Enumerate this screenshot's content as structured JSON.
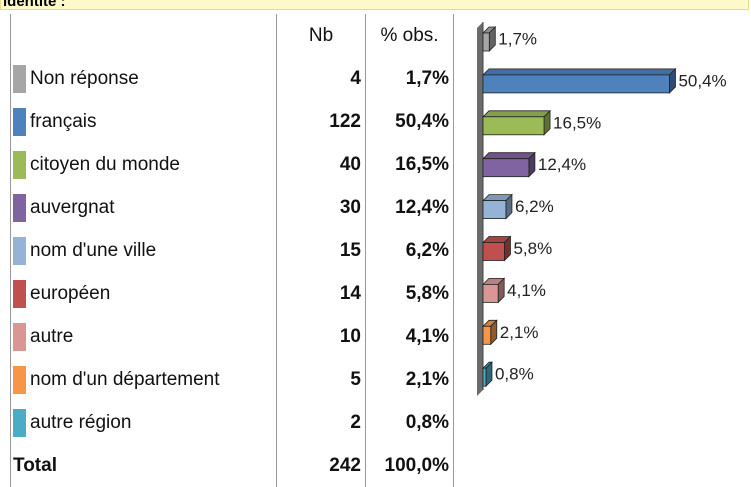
{
  "header": {
    "title": "identité :"
  },
  "table": {
    "columns": [
      "Nb",
      "% obs."
    ],
    "rows": [
      [
        "Non réponse",
        "4",
        "1,7%"
      ],
      [
        "français",
        "122",
        "50,4%"
      ],
      [
        "citoyen du monde",
        "40",
        "16,5%"
      ],
      [
        "auvergnat",
        "30",
        "12,4%"
      ],
      [
        "nom d'une ville",
        "15",
        "6,2%"
      ],
      [
        "européen",
        "14",
        "5,8%"
      ],
      [
        "autre",
        "10",
        "4,1%"
      ],
      [
        "nom d'un département",
        "5",
        "2,1%"
      ],
      [
        "autre région",
        "2",
        "0,8%"
      ]
    ],
    "total": [
      "Total",
      "242",
      "100,0%"
    ]
  },
  "chart_data": {
    "type": "bar3d",
    "orientation": "horizontal",
    "values": [
      1.7,
      50.4,
      16.5,
      12.4,
      6.2,
      5.8,
      4.1,
      2.1,
      0.8
    ],
    "value_labels": [
      "1,7%",
      "50,4%",
      "16,5%",
      "12,4%",
      "6,2%",
      "5,8%",
      "4,1%",
      "2,1%",
      "0,8%"
    ],
    "colors": [
      "#a6a6a6",
      "#4f81bd",
      "#9bbb59",
      "#8064a2",
      "#95b3d7",
      "#c0504d",
      "#d99694",
      "#f79646",
      "#4bacc6"
    ]
  }
}
